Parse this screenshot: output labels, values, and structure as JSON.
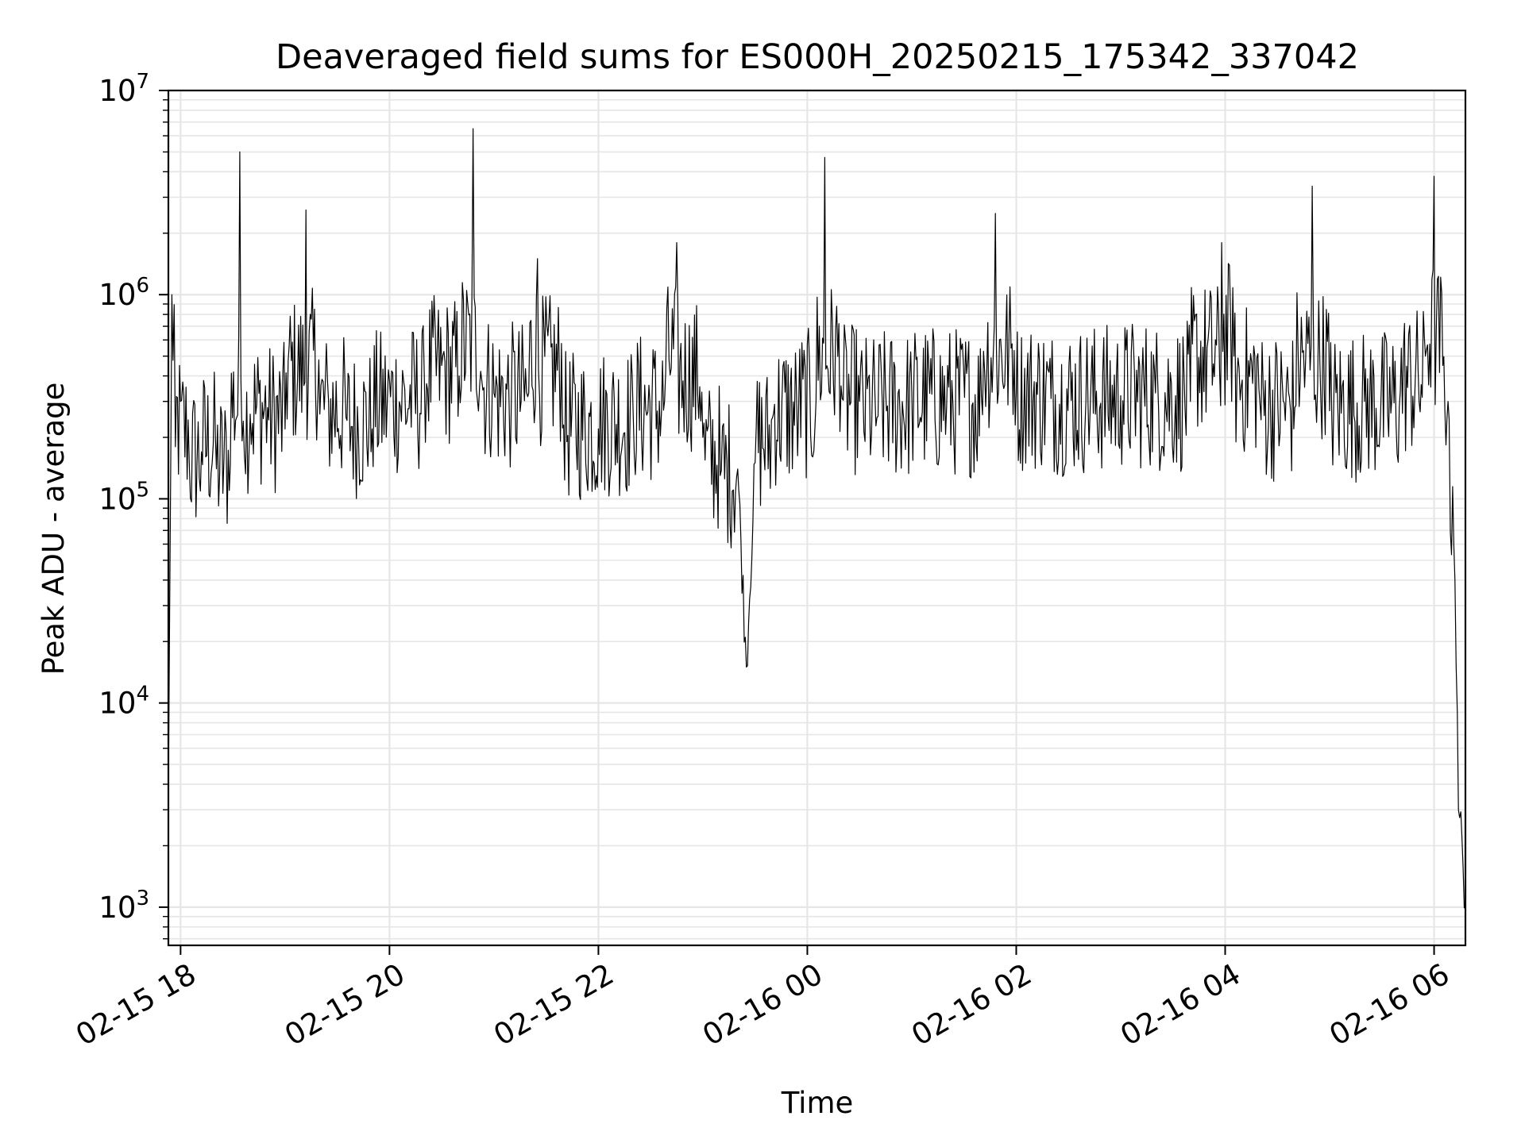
{
  "chart_data": {
    "type": "line",
    "title": "Deaveraged field sums for ES000H_20250215_175342_337042",
    "xlabel": "Time",
    "ylabel": "Peak ADU - average",
    "yscale": "log",
    "ylim": [
      650,
      10000000
    ],
    "xlim": [
      "2025-02-15 17:53",
      "2025-02-16 06:18"
    ],
    "grid": true,
    "x_ticks": [
      {
        "t": "2025-02-15 18:00",
        "label": "02-15 18"
      },
      {
        "t": "2025-02-15 20:00",
        "label": "02-15 20"
      },
      {
        "t": "2025-02-15 22:00",
        "label": "02-15 22"
      },
      {
        "t": "2025-02-16 00:00",
        "label": "02-16 00"
      },
      {
        "t": "2025-02-16 02:00",
        "label": "02-16 02"
      },
      {
        "t": "2025-02-16 04:00",
        "label": "02-16 04"
      },
      {
        "t": "2025-02-16 06:00",
        "label": "02-16 06"
      }
    ],
    "y_ticks": [
      {
        "value": 1000,
        "base": "10",
        "exp": "3"
      },
      {
        "value": 10000,
        "base": "10",
        "exp": "4"
      },
      {
        "value": 100000,
        "base": "10",
        "exp": "5"
      },
      {
        "value": 1000000,
        "base": "10",
        "exp": "6"
      },
      {
        "value": 10000000,
        "base": "10",
        "exp": "7"
      }
    ],
    "line_color": "#000000",
    "grid_color": "#e6e6e6",
    "series": [
      {
        "x": [
          "2025-02-15 17:53",
          "2025-02-15 17:55",
          "2025-02-15 17:57",
          "2025-02-15 18:00",
          "2025-02-15 18:05",
          "2025-02-15 18:12",
          "2025-02-15 18:20",
          "2025-02-15 18:28",
          "2025-02-15 18:34",
          "2025-02-15 18:36",
          "2025-02-15 18:40",
          "2025-02-15 18:50",
          "2025-02-15 19:00",
          "2025-02-15 19:12",
          "2025-02-15 19:20",
          "2025-02-15 19:25",
          "2025-02-15 19:35",
          "2025-02-15 19:50",
          "2025-02-15 20:00",
          "2025-02-15 20:10",
          "2025-02-15 20:20",
          "2025-02-15 20:30",
          "2025-02-15 20:40",
          "2025-02-15 20:48",
          "2025-02-15 20:53",
          "2025-02-15 21:00",
          "2025-02-15 21:10",
          "2025-02-15 21:20",
          "2025-02-15 21:25",
          "2025-02-15 21:40",
          "2025-02-15 22:00",
          "2025-02-15 22:20",
          "2025-02-15 22:38",
          "2025-02-15 22:45",
          "2025-02-15 23:00",
          "2025-02-15 23:10",
          "2025-02-15 23:20",
          "2025-02-15 23:25",
          "2025-02-15 23:30",
          "2025-02-15 23:40",
          "2025-02-15 23:55",
          "2025-02-16 00:05",
          "2025-02-16 00:10",
          "2025-02-16 00:20",
          "2025-02-16 00:30",
          "2025-02-16 00:40",
          "2025-02-16 01:00",
          "2025-02-16 01:20",
          "2025-02-16 01:40",
          "2025-02-16 01:48",
          "2025-02-16 02:00",
          "2025-02-16 02:20",
          "2025-02-16 02:40",
          "2025-02-16 03:00",
          "2025-02-16 03:20",
          "2025-02-16 03:40",
          "2025-02-16 03:58",
          "2025-02-16 04:05",
          "2025-02-16 04:20",
          "2025-02-16 04:40",
          "2025-02-16 04:50",
          "2025-02-16 05:00",
          "2025-02-16 05:20",
          "2025-02-16 05:40",
          "2025-02-16 05:55",
          "2025-02-16 06:00",
          "2025-02-16 06:05",
          "2025-02-16 06:08",
          "2025-02-16 06:12",
          "2025-02-16 06:14",
          "2025-02-16 06:16",
          "2025-02-16 06:18"
        ],
        "y": [
          3500,
          1000000,
          180000,
          300000,
          150000,
          170000,
          200000,
          110000,
          5000000,
          240000,
          260000,
          280000,
          220000,
          2600000,
          260000,
          300000,
          250000,
          220000,
          380000,
          240000,
          400000,
          450000,
          400000,
          6500000,
          380000,
          330000,
          300000,
          330000,
          1500000,
          230000,
          220000,
          260000,
          300000,
          1800000,
          200000,
          130000,
          140000,
          15000,
          150000,
          250000,
          280000,
          300000,
          4700000,
          310000,
          300000,
          250000,
          330000,
          280000,
          320000,
          2500000,
          330000,
          310000,
          300000,
          320000,
          330000,
          300000,
          1800000,
          500000,
          290000,
          280000,
          3400000,
          270000,
          300000,
          280000,
          500000,
          3800000,
          450000,
          300000,
          40000,
          3000,
          2200,
          1000
        ]
      }
    ]
  }
}
